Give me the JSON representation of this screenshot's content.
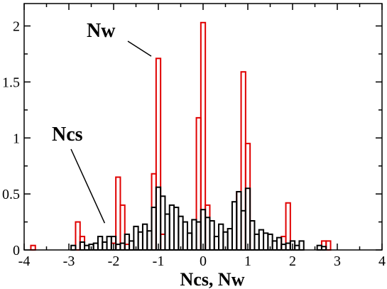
{
  "chart_data": {
    "type": "bar",
    "style": "step-histogram",
    "xlabel": "Ncs, Nw",
    "ylabel": "",
    "xlim": [
      -4,
      4
    ],
    "ylim": [
      0,
      2.2
    ],
    "xticks": [
      -4,
      -3,
      -2,
      -1,
      0,
      1,
      2,
      3,
      4
    ],
    "yticks": [
      0,
      0.5,
      1,
      1.5,
      2
    ],
    "ytick_labels": [
      "0",
      "0.5",
      "1",
      "1.5",
      "2"
    ],
    "bin_width": 0.1,
    "grid": false,
    "colors": {
      "Nw": "#e00000",
      "Ncs": "#000000"
    },
    "series": [
      {
        "name": "Nw",
        "bins": [
          {
            "x": -3.8,
            "y": 0.04
          },
          {
            "x": -2.8,
            "y": 0.25
          },
          {
            "x": -2.7,
            "y": 0.12
          },
          {
            "x": -2.0,
            "y": 0.06
          },
          {
            "x": -1.9,
            "y": 0.65
          },
          {
            "x": -1.8,
            "y": 0.4
          },
          {
            "x": -1.7,
            "y": 0.05
          },
          {
            "x": -1.1,
            "y": 0.68
          },
          {
            "x": -1.0,
            "y": 1.71
          },
          {
            "x": -0.9,
            "y": 0.14
          },
          {
            "x": -0.1,
            "y": 1.18
          },
          {
            "x": 0.0,
            "y": 2.03
          },
          {
            "x": 0.1,
            "y": 0.4
          },
          {
            "x": 0.8,
            "y": 0.52
          },
          {
            "x": 0.9,
            "y": 1.59
          },
          {
            "x": 1.0,
            "y": 0.95
          },
          {
            "x": 1.8,
            "y": 0.12
          },
          {
            "x": 1.9,
            "y": 0.42
          },
          {
            "x": 2.7,
            "y": 0.08
          },
          {
            "x": 2.8,
            "y": 0.08
          }
        ]
      },
      {
        "name": "Ncs",
        "bins": [
          {
            "x": -2.9,
            "y": 0.04
          },
          {
            "x": -2.7,
            "y": 0.07
          },
          {
            "x": -2.6,
            "y": 0.04
          },
          {
            "x": -2.5,
            "y": 0.05
          },
          {
            "x": -2.4,
            "y": 0.06
          },
          {
            "x": -2.3,
            "y": 0.12
          },
          {
            "x": -2.2,
            "y": 0.07
          },
          {
            "x": -2.1,
            "y": 0.12
          },
          {
            "x": -2.0,
            "y": 0.12
          },
          {
            "x": -1.9,
            "y": 0.05
          },
          {
            "x": -1.8,
            "y": 0.06
          },
          {
            "x": -1.7,
            "y": 0.14
          },
          {
            "x": -1.6,
            "y": 0.08
          },
          {
            "x": -1.5,
            "y": 0.21
          },
          {
            "x": -1.4,
            "y": 0.16
          },
          {
            "x": -1.3,
            "y": 0.23
          },
          {
            "x": -1.2,
            "y": 0.17
          },
          {
            "x": -1.1,
            "y": 0.38
          },
          {
            "x": -1.0,
            "y": 0.56
          },
          {
            "x": -0.9,
            "y": 0.48
          },
          {
            "x": -0.8,
            "y": 0.32
          },
          {
            "x": -0.7,
            "y": 0.4
          },
          {
            "x": -0.6,
            "y": 0.38
          },
          {
            "x": -0.5,
            "y": 0.3
          },
          {
            "x": -0.4,
            "y": 0.25
          },
          {
            "x": -0.3,
            "y": 0.15
          },
          {
            "x": -0.2,
            "y": 0.27
          },
          {
            "x": -0.1,
            "y": 0.25
          },
          {
            "x": 0.0,
            "y": 0.36
          },
          {
            "x": 0.1,
            "y": 0.29
          },
          {
            "x": 0.2,
            "y": 0.26
          },
          {
            "x": 0.3,
            "y": 0.12
          },
          {
            "x": 0.4,
            "y": 0.23
          },
          {
            "x": 0.5,
            "y": 0.16
          },
          {
            "x": 0.6,
            "y": 0.19
          },
          {
            "x": 0.7,
            "y": 0.43
          },
          {
            "x": 0.8,
            "y": 0.52
          },
          {
            "x": 0.9,
            "y": 0.35
          },
          {
            "x": 1.0,
            "y": 0.55
          },
          {
            "x": 1.1,
            "y": 0.26
          },
          {
            "x": 1.2,
            "y": 0.14
          },
          {
            "x": 1.3,
            "y": 0.18
          },
          {
            "x": 1.4,
            "y": 0.15
          },
          {
            "x": 1.5,
            "y": 0.14
          },
          {
            "x": 1.6,
            "y": 0.08
          },
          {
            "x": 1.7,
            "y": 0.11
          },
          {
            "x": 1.8,
            "y": 0.05
          },
          {
            "x": 1.9,
            "y": 0.06
          },
          {
            "x": 2.0,
            "y": 0.08
          },
          {
            "x": 2.1,
            "y": 0.04
          },
          {
            "x": 2.2,
            "y": 0.08
          },
          {
            "x": 2.6,
            "y": 0.04
          },
          {
            "x": 2.7,
            "y": 0.03
          }
        ]
      }
    ],
    "annotations": [
      {
        "text": "Nw",
        "points_to": {
          "x": -1.0,
          "y": 1.73
        }
      },
      {
        "text": "Ncs",
        "points_to": {
          "x": -2.2,
          "y": 0.24
        }
      }
    ]
  }
}
